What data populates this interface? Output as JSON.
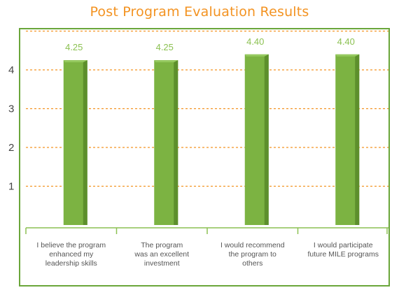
{
  "title": "Post Program Evaluation Results",
  "chart_data": {
    "type": "bar",
    "title": "Post Program Evaluation Results",
    "categories": [
      "I believe the program\nenhanced my\nleadership skills",
      "The program\nwas an excellent\ninvestment",
      "I would recommend\nthe program to\nothers",
      "I would participate\nfuture MILE programs"
    ],
    "values": [
      4.25,
      4.25,
      4.4,
      4.4
    ],
    "data_labels": [
      "4.25",
      "4.25",
      "4.40",
      "4.40"
    ],
    "y_ticks": [
      "1",
      "2",
      "3",
      "4"
    ],
    "ylim": [
      0,
      5
    ],
    "grid": true,
    "xlabel": "",
    "ylabel": ""
  },
  "colors": {
    "title": "#f39322",
    "frame": "#6aa63a",
    "bar": "#7cb342",
    "bar_dark": "#5d8f2c",
    "data_label": "#8cc152",
    "grid": "#f39322",
    "axis": "#8cc152"
  }
}
